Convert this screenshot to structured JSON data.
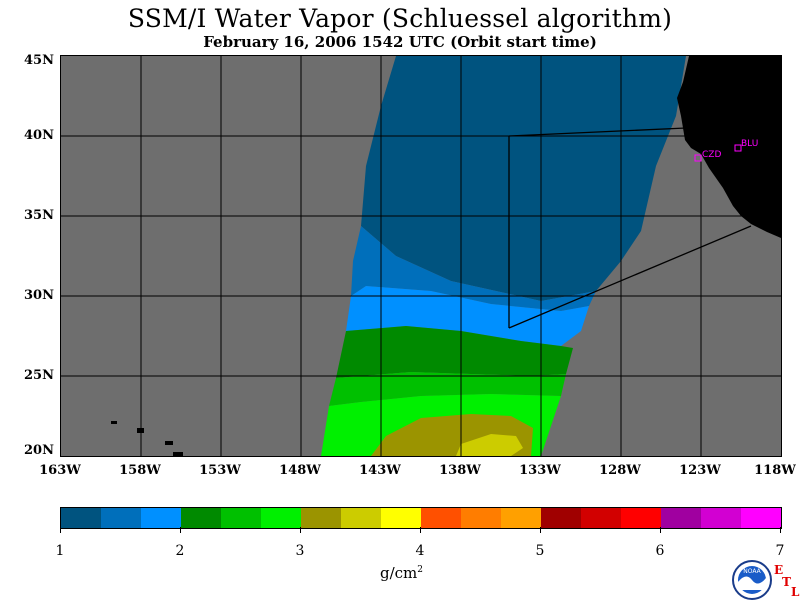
{
  "title": "SSM/I Water Vapor (Schluessel algorithm)",
  "subtitle": "February 16, 2006  1542 UTC  (Orbit start time)",
  "latitude_labels": [
    "45N",
    "40N",
    "35N",
    "30N",
    "25N",
    "20N"
  ],
  "longitude_labels": [
    "163W",
    "158W",
    "153W",
    "148W",
    "143W",
    "138W",
    "133W",
    "128W",
    "123W",
    "118W"
  ],
  "stations": [
    {
      "id": "CZD"
    },
    {
      "id": "BLU"
    }
  ],
  "colorbar": {
    "unit_base": "g/cm",
    "unit_exp": "2",
    "tick_labels": [
      "1",
      "2",
      "3",
      "4",
      "5",
      "6",
      "7"
    ],
    "colors": [
      "#00537f",
      "#006fbb",
      "#0090ff",
      "#008a00",
      "#00c000",
      "#00f000",
      "#9b9400",
      "#cccc00",
      "#ffff00",
      "#ff5000",
      "#ff7d00",
      "#ffa000",
      "#a00000",
      "#d20000",
      "#ff0000",
      "#a000a0",
      "#d200d2",
      "#ff00ff"
    ]
  },
  "logo": {
    "text": "NOAA"
  },
  "watermark": [
    "E",
    "T",
    "L"
  ],
  "colors": {
    "land": "#000000",
    "no_data": "#6e6e6e",
    "station": "#ff00ff"
  }
}
